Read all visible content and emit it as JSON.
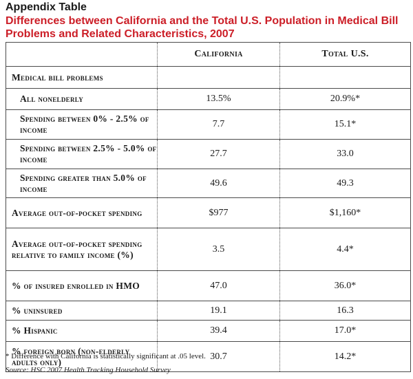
{
  "appendix_label": "Appendix Table",
  "title": "Differences between California and the Total U.S. Population in Medical Bill Problems and Related Characteristics, 2007",
  "columns": [
    "California",
    "Total U.S."
  ],
  "rows": [
    {
      "label": "Medical bill problems",
      "california": "",
      "total_us": ""
    },
    {
      "label": "All nonelderly",
      "california": "13.5%",
      "total_us": "20.9%*"
    },
    {
      "label": "Spending between 0% - 2.5% of income",
      "california": "7.7",
      "total_us": "15.1*"
    },
    {
      "label": "Spending between 2.5% - 5.0% of income",
      "california": "27.7",
      "total_us": "33.0"
    },
    {
      "label": "Spending greater than 5.0% of income",
      "california": "49.6",
      "total_us": "49.3"
    },
    {
      "label": "Average out-of-pocket spending",
      "california": "$977",
      "total_us": "$1,160*"
    },
    {
      "label": "Average out-of-pocket spending relative to family income (%)",
      "california": "3.5",
      "total_us": "4.4*"
    },
    {
      "label": "% of insured enrolled in HMO",
      "california": "47.0",
      "total_us": "36.0*"
    },
    {
      "label": "% uninsured",
      "california": "19.1",
      "total_us": "16.3"
    },
    {
      "label": "% Hispanic",
      "california": "39.4",
      "total_us": "17.0*"
    },
    {
      "label": "% foreign born (non-elderly adults only)",
      "california": "30.7",
      "total_us": "14.2*"
    }
  ],
  "footnote": "* Difference with California is statistically significant at .05 level.",
  "source": "Source:  HSC 2007 Health Tracking Household Survey"
}
